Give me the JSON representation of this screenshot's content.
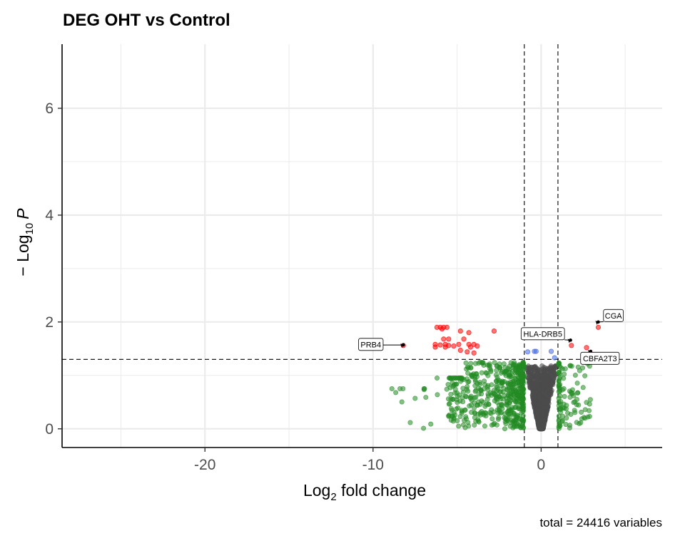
{
  "chart_data": {
    "type": "scatter",
    "title": "DEG OHT vs Control",
    "xlabel_main": "Log",
    "xlabel_sub": "2",
    "xlabel_rest": " fold change",
    "ylabel_prefix": "− Log",
    "ylabel_sub": "10",
    "ylabel_italic": "P",
    "caption": "total = 24416 variables",
    "xlim": [
      -28.5,
      7.2
    ],
    "ylim": [
      -0.35,
      7.2
    ],
    "xticks": [
      -20,
      -10,
      0
    ],
    "xtick_labels": [
      "-20",
      "-10",
      "0"
    ],
    "xminor": [
      -25,
      -15,
      -5,
      5
    ],
    "yticks": [
      0,
      2,
      4,
      6
    ],
    "ytick_labels": [
      "0",
      "2",
      "4",
      "6"
    ],
    "yminor": [
      1,
      3,
      5
    ],
    "grid": true,
    "fc_cutoff": [
      -1,
      1
    ],
    "p_cutoff": 1.3,
    "colors": {
      "ns": "#4d4d4d",
      "log2fc": "#228b22",
      "p": "#4169e1",
      "p_and_log2fc": "#ff0000"
    },
    "series": [
      {
        "key": "p_and_log2fc",
        "points": [
          [
            -6.2,
            1.9
          ],
          [
            -6.0,
            1.9
          ],
          [
            -5.8,
            1.9
          ],
          [
            -5.6,
            1.9
          ],
          [
            -5.9,
            1.87
          ],
          [
            -4.8,
            1.83
          ],
          [
            -4.3,
            1.8
          ],
          [
            -2.8,
            1.83
          ],
          [
            -5.8,
            1.68
          ],
          [
            -5.5,
            1.68
          ],
          [
            -4.6,
            1.68
          ],
          [
            -6.3,
            1.58
          ],
          [
            -6.0,
            1.57
          ],
          [
            -5.7,
            1.58
          ],
          [
            -5.5,
            1.56
          ],
          [
            -5.2,
            1.55
          ],
          [
            -4.9,
            1.58
          ],
          [
            -4.3,
            1.58
          ],
          [
            -4.0,
            1.58
          ],
          [
            -3.8,
            1.55
          ],
          [
            -4.2,
            1.53
          ],
          [
            -5.7,
            1.53
          ],
          [
            -6.3,
            1.53
          ],
          [
            -4.8,
            1.47
          ],
          [
            -4.4,
            1.44
          ],
          [
            -4.0,
            1.42
          ],
          [
            -8.2,
            1.56
          ],
          [
            1.8,
            1.56
          ],
          [
            3.4,
            1.9
          ],
          [
            2.7,
            1.52
          ]
        ]
      },
      {
        "key": "p",
        "points": [
          [
            -0.8,
            1.44
          ],
          [
            -0.4,
            1.45
          ],
          [
            -0.3,
            1.45
          ],
          [
            0.6,
            1.45
          ],
          [
            0.8,
            1.33
          ]
        ]
      }
    ],
    "labels": [
      {
        "text": "PRB4",
        "x": -8.2,
        "y": 1.57,
        "lx": -9.4,
        "ly": 1.58,
        "anchor": "end"
      },
      {
        "text": "HLA-DRB5",
        "x": 1.75,
        "y": 1.66,
        "lx": 0.1,
        "ly": 1.78,
        "anchor": "middle"
      },
      {
        "text": "CGA",
        "x": 3.4,
        "y": 2.0,
        "lx": 4.3,
        "ly": 2.12,
        "anchor": "middle"
      },
      {
        "text": "CBFA2T3",
        "x": 2.95,
        "y": 1.45,
        "lx": 3.5,
        "ly": 1.32,
        "anchor": "middle"
      }
    ]
  }
}
